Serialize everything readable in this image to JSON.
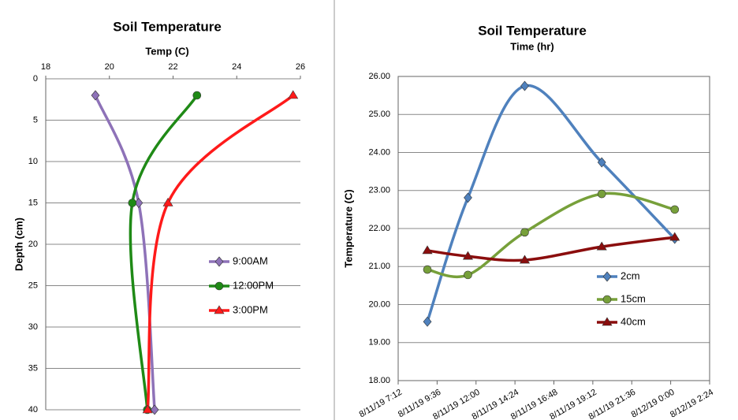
{
  "chart_data": [
    {
      "type": "line",
      "title": "Soil Temperature",
      "x_label": "Temp (C)",
      "y_label": "Depth (cm)",
      "xlim": [
        18,
        26
      ],
      "xticks": [
        18,
        20,
        22,
        24,
        26
      ],
      "x_axis_position": "top",
      "ylim": [
        0,
        40
      ],
      "yticks": [
        0,
        5,
        10,
        15,
        20,
        25,
        30,
        35,
        40
      ],
      "invert_y": true,
      "grid": true,
      "series": [
        {
          "name": "9:00AM",
          "color": "#8e72b8",
          "marker": "diamond",
          "x": [
            19.56,
            20.92,
            21.42
          ],
          "values": [
            2,
            15,
            40
          ]
        },
        {
          "name": "12:00PM",
          "color": "#1f8a16",
          "marker": "circle",
          "x": [
            22.75,
            20.72,
            21.19
          ],
          "values": [
            2,
            15,
            40
          ]
        },
        {
          "name": "3:00PM",
          "color": "#ff1a1a",
          "marker": "triangle",
          "x": [
            25.77,
            21.84,
            21.2
          ],
          "values": [
            2,
            15,
            40
          ]
        }
      ]
    },
    {
      "type": "line",
      "title": "Soil Temperature",
      "x_label": "Time (hr)",
      "y_label": "Temperature (C)",
      "xlim": [
        "2019-08-11T07:12",
        "2019-08-12T02:24"
      ],
      "xticks": [
        {
          "value": "2019-08-11T07:12",
          "label": "8/11/19 7:12"
        },
        {
          "value": "2019-08-11T09:36",
          "label": "8/11/19 9:36"
        },
        {
          "value": "2019-08-11T12:00",
          "label": "8/11/19 12:00"
        },
        {
          "value": "2019-08-11T14:24",
          "label": "8/11/19 14:24"
        },
        {
          "value": "2019-08-11T16:48",
          "label": "8/11/19 16:48"
        },
        {
          "value": "2019-08-11T19:12",
          "label": "8/11/19 19:12"
        },
        {
          "value": "2019-08-11T21:36",
          "label": "8/11/19 21:36"
        },
        {
          "value": "2019-08-12T00:00",
          "label": "8/12/19 0:00"
        },
        {
          "value": "2019-08-12T02:24",
          "label": "8/12/19 2:24"
        }
      ],
      "x_axis_position": "top",
      "ylim": [
        18,
        26
      ],
      "yticks": [
        {
          "value": 18,
          "label": "18.00"
        },
        {
          "value": 19,
          "label": "19.00"
        },
        {
          "value": 20,
          "label": "20.00"
        },
        {
          "value": 21,
          "label": "21.00"
        },
        {
          "value": 22,
          "label": "22.00"
        },
        {
          "value": 23,
          "label": "23.00"
        },
        {
          "value": 24,
          "label": "24.00"
        },
        {
          "value": 25,
          "label": "25.00"
        },
        {
          "value": 26,
          "label": "26.00"
        }
      ],
      "invert_y": false,
      "grid": true,
      "series": [
        {
          "name": "2cm",
          "color": "#4f81bd",
          "marker": "diamond",
          "x": [
            "2019-08-11T09:00",
            "2019-08-11T11:30",
            "2019-08-11T15:00",
            "2019-08-11T19:45",
            "2019-08-12T00:15"
          ],
          "values": [
            19.55,
            22.81,
            25.75,
            23.74,
            21.73
          ]
        },
        {
          "name": "15cm",
          "color": "#77a03a",
          "marker": "circle",
          "x": [
            "2019-08-11T09:00",
            "2019-08-11T11:30",
            "2019-08-11T15:00",
            "2019-08-11T19:45",
            "2019-08-12T00:15"
          ],
          "values": [
            20.92,
            20.78,
            21.9,
            22.91,
            22.5
          ]
        },
        {
          "name": "40cm",
          "color": "#8b0d0d",
          "marker": "triangle",
          "x": [
            "2019-08-11T09:00",
            "2019-08-11T11:30",
            "2019-08-11T15:00",
            "2019-08-11T19:45",
            "2019-08-12T00:15"
          ],
          "values": [
            21.42,
            21.27,
            21.17,
            21.52,
            21.77
          ]
        }
      ]
    }
  ]
}
